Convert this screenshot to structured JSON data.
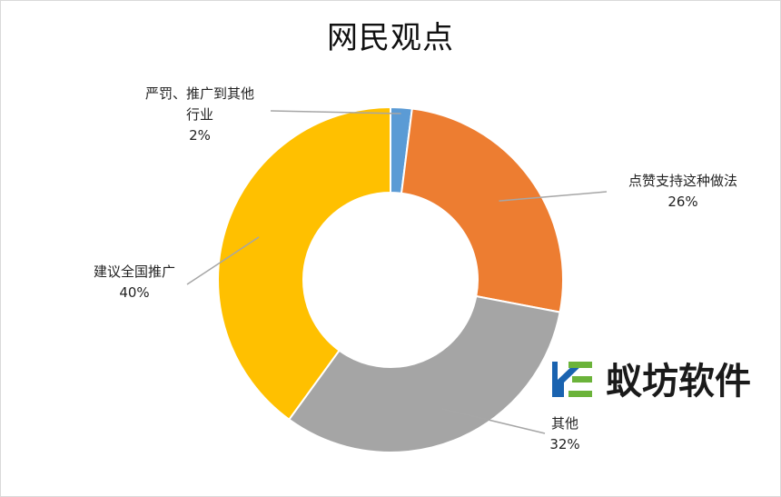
{
  "chart_data": {
    "type": "pie",
    "title": "网民观点",
    "donut": true,
    "slices": [
      {
        "name_lines": [
          "严罚、推广到其他",
          "行业"
        ],
        "pct_label": "2%",
        "value": 2,
        "color": "#5b9bd5"
      },
      {
        "name_lines": [
          "点赞支持这种做法"
        ],
        "pct_label": "26%",
        "value": 26,
        "color": "#ed7d31"
      },
      {
        "name_lines": [
          "其他"
        ],
        "pct_label": "32%",
        "value": 32,
        "color": "#a5a5a5"
      },
      {
        "name_lines": [
          "建议全国推广"
        ],
        "pct_label": "40%",
        "value": 40,
        "color": "#ffc000"
      }
    ]
  },
  "watermark": {
    "text": "蚁坊软件",
    "colors": {
      "blue": "#1a63b0",
      "green": "#6bb33a"
    }
  }
}
